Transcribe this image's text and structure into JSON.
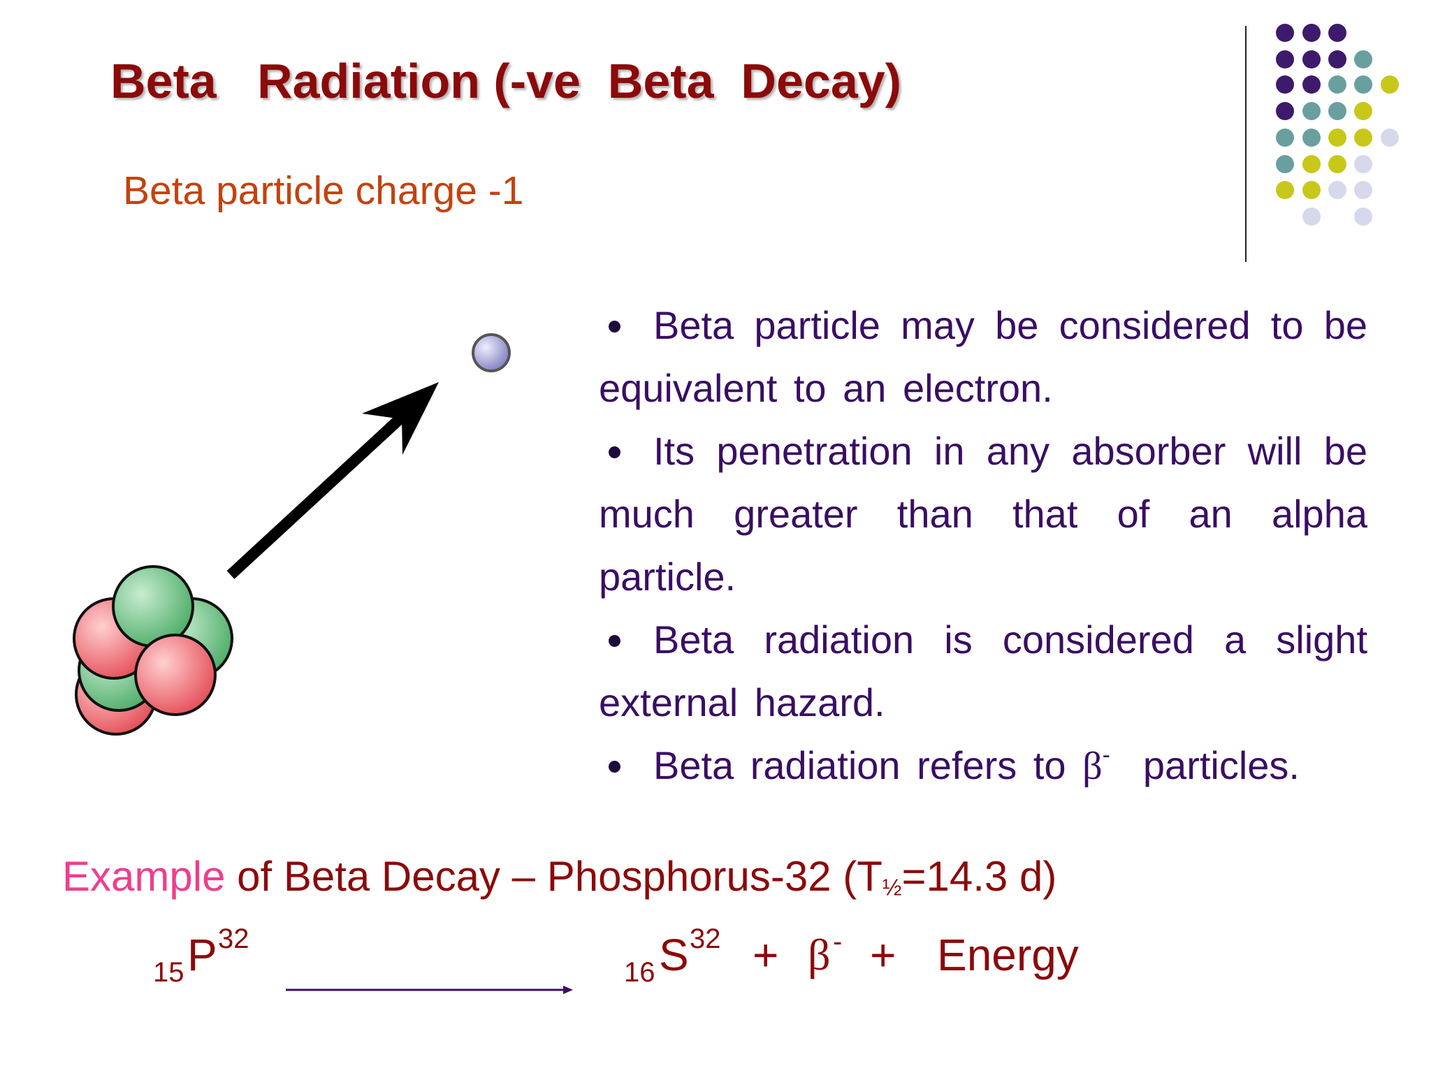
{
  "header": {
    "title": "Beta   Radiation (-ve  Beta  Decay)",
    "subtitle": "Beta particle charge -1"
  },
  "bullets": [
    {
      "text": "Beta  particle  may  be  considered to  be  equivalent  to  an  electron."
    },
    {
      "text": "Its  penetration  in  any  absorber will  be  much  greater  than  that  of  an alpha  particle."
    },
    {
      "text": "Beta  radiation  is  considered  a slight  external  hazard."
    },
    {
      "text": "Beta radiation refers to ",
      "symbol": "β",
      "superscript": "-",
      "after": "  particles."
    }
  ],
  "example": {
    "highlight": "Example",
    "text": " of Beta Decay – Phosphorus-32 (T",
    "subscript": "½",
    "after": "=14.3 d)"
  },
  "equation": {
    "reactant": {
      "atomic_number": "15",
      "symbol": "P",
      "mass_number": "32"
    },
    "product": {
      "atomic_number": "16",
      "symbol": "S",
      "mass_number": "32"
    },
    "plus1": "+",
    "particle": "β",
    "particle_charge": "-",
    "plus2": "+",
    "energy": "Energy"
  }
}
